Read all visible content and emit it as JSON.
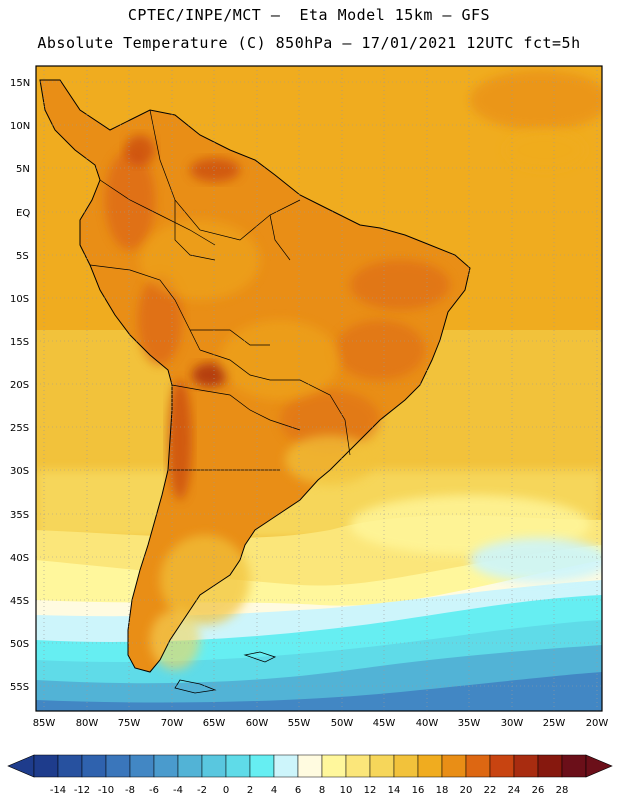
{
  "header": {
    "line1": "CPTEC/INPE/MCT –  Eta Model 15km – GFS",
    "line2": "Absolute Temperature (C) 850hPa – 17/01/2021 12UTC fct=5h"
  },
  "map": {
    "lat_labels": [
      "15N",
      "10N",
      "5N",
      "EQ",
      "5S",
      "10S",
      "15S",
      "20S",
      "25S",
      "30S",
      "35S",
      "40S",
      "45S",
      "50S",
      "55S"
    ],
    "lon_labels": [
      "85W",
      "80W",
      "75W",
      "70W",
      "65W",
      "60W",
      "55W",
      "50W",
      "45W",
      "40W",
      "35W",
      "30W",
      "25W",
      "20W"
    ]
  },
  "colorbar": {
    "ticks": [
      "-14",
      "-12",
      "-10",
      "-8",
      "-6",
      "-4",
      "-2",
      "0",
      "2",
      "4",
      "6",
      "8",
      "10",
      "12",
      "14",
      "16",
      "18",
      "20",
      "22",
      "24",
      "26",
      "28"
    ],
    "colors": [
      "#1e3c8c",
      "#27519f",
      "#2f62ae",
      "#3a76bb",
      "#4287c4",
      "#4a9bcd",
      "#52b3d6",
      "#59c7df",
      "#5fdbe8",
      "#66eef2",
      "#cdf5fb",
      "#fffbe0",
      "#fff79c",
      "#fbe67a",
      "#f6d65a",
      "#f2c23b",
      "#f0ac1f",
      "#e98e16",
      "#dd6712",
      "#c84411",
      "#a82c10",
      "#86180e",
      "#6b0f19"
    ],
    "under_color": "#1e3c8c",
    "over_color": "#6b0f19"
  }
}
